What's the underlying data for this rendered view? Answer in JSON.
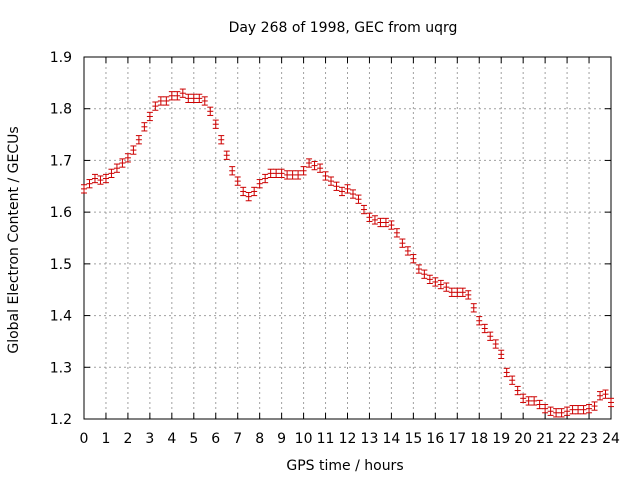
{
  "chart_data": {
    "type": "scatter",
    "title": "Day 268 of 1998, GEC from uqrg",
    "xlabel": "GPS time / hours",
    "ylabel": "Global Electron Content / GECUs",
    "xlim": [
      0,
      24
    ],
    "ylim": [
      1.2,
      1.9
    ],
    "xticks": [
      0,
      1,
      2,
      3,
      4,
      5,
      6,
      7,
      8,
      9,
      10,
      11,
      12,
      13,
      14,
      15,
      16,
      17,
      18,
      19,
      20,
      21,
      22,
      23,
      24
    ],
    "yticks": [
      1.2,
      1.3,
      1.4,
      1.5,
      1.6,
      1.7,
      1.8,
      1.9
    ],
    "grid": true,
    "marker_color": "#cc0000",
    "error": 0.008,
    "series": [
      {
        "name": "GEC",
        "x": [
          0,
          0.25,
          0.5,
          0.75,
          1,
          1.25,
          1.5,
          1.75,
          2,
          2.25,
          2.5,
          2.75,
          3,
          3.25,
          3.5,
          3.75,
          4,
          4.25,
          4.5,
          4.75,
          5,
          5.25,
          5.5,
          5.75,
          6,
          6.25,
          6.5,
          6.75,
          7,
          7.25,
          7.5,
          7.75,
          8,
          8.25,
          8.5,
          8.75,
          9,
          9.25,
          9.5,
          9.75,
          10,
          10.25,
          10.5,
          10.75,
          11,
          11.25,
          11.5,
          11.75,
          12,
          12.25,
          12.5,
          12.75,
          13,
          13.25,
          13.5,
          13.75,
          14,
          14.25,
          14.5,
          14.75,
          15,
          15.25,
          15.5,
          15.75,
          16,
          16.25,
          16.5,
          16.75,
          17,
          17.25,
          17.5,
          17.75,
          18,
          18.25,
          18.5,
          18.75,
          19,
          19.25,
          19.5,
          19.75,
          20,
          20.25,
          20.5,
          20.75,
          21,
          21.25,
          21.5,
          21.75,
          22,
          22.25,
          22.5,
          22.75,
          23,
          23.25,
          23.5,
          23.75,
          24
        ],
        "y": [
          1.645,
          1.655,
          1.665,
          1.662,
          1.665,
          1.675,
          1.685,
          1.695,
          1.705,
          1.72,
          1.74,
          1.765,
          1.785,
          1.805,
          1.815,
          1.815,
          1.825,
          1.825,
          1.83,
          1.82,
          1.82,
          1.82,
          1.815,
          1.795,
          1.77,
          1.74,
          1.71,
          1.68,
          1.66,
          1.64,
          1.63,
          1.64,
          1.655,
          1.665,
          1.675,
          1.675,
          1.675,
          1.672,
          1.672,
          1.672,
          1.68,
          1.695,
          1.69,
          1.685,
          1.67,
          1.66,
          1.65,
          1.64,
          1.645,
          1.635,
          1.625,
          1.605,
          1.59,
          1.585,
          1.58,
          1.58,
          1.575,
          1.56,
          1.54,
          1.525,
          1.51,
          1.49,
          1.48,
          1.47,
          1.465,
          1.46,
          1.455,
          1.445,
          1.445,
          1.445,
          1.44,
          1.415,
          1.39,
          1.375,
          1.36,
          1.345,
          1.325,
          1.29,
          1.275,
          1.255,
          1.24,
          1.235,
          1.235,
          1.228,
          1.22,
          1.215,
          1.212,
          1.212,
          1.215,
          1.218,
          1.218,
          1.218,
          1.22,
          1.225,
          1.245,
          1.248,
          1.232
        ]
      }
    ]
  }
}
